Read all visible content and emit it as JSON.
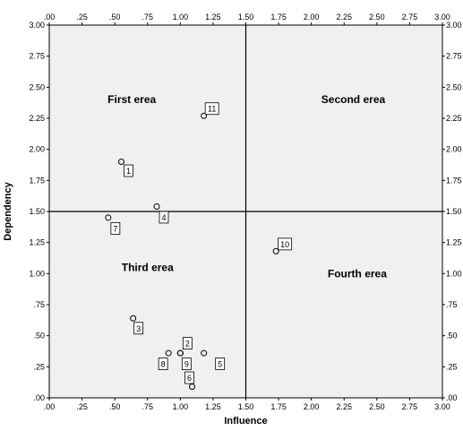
{
  "chart_data": {
    "type": "scatter",
    "xlabel": "Influence",
    "ylabel": "Dependency",
    "xlim": [
      0,
      3
    ],
    "ylim": [
      0,
      3
    ],
    "xticks": [
      ".00",
      ".25",
      ".50",
      ".75",
      "1.00",
      "1.25",
      "1.50",
      "1.75",
      "2.00",
      "2.25",
      "2.50",
      "2.75",
      "3.00"
    ],
    "yticks": [
      ".00",
      ".25",
      ".50",
      ".75",
      "1.00",
      "1.25",
      "1.50",
      "1.75",
      "2.00",
      "2.25",
      "2.50",
      "2.75",
      "3.00"
    ],
    "reference_lines": {
      "x": 1.5,
      "y": 1.5
    },
    "quadrants": [
      {
        "name": "First erea",
        "x": 0.63,
        "y": 2.4
      },
      {
        "name": "Second erea",
        "x": 2.32,
        "y": 2.4
      },
      {
        "name": "Third erea",
        "x": 0.75,
        "y": 1.05
      },
      {
        "name": "Fourth erea",
        "x": 2.35,
        "y": 1.0
      }
    ],
    "points": [
      {
        "label": "1",
        "x": 0.55,
        "y": 1.9
      },
      {
        "label": "2",
        "x": 1.0,
        "y": 0.36
      },
      {
        "label": "3",
        "x": 0.64,
        "y": 0.64
      },
      {
        "label": "4",
        "x": 0.82,
        "y": 1.54
      },
      {
        "label": "5",
        "x": 1.18,
        "y": 0.36
      },
      {
        "label": "6",
        "x": 1.09,
        "y": 0.09
      },
      {
        "label": "7",
        "x": 0.45,
        "y": 1.45
      },
      {
        "label": "8",
        "x": 0.91,
        "y": 0.36
      },
      {
        "label": "9",
        "x": 1.0,
        "y": 0.36
      },
      {
        "label": "10",
        "x": 1.73,
        "y": 1.18
      },
      {
        "label": "11",
        "x": 1.18,
        "y": 2.27
      }
    ],
    "label_offsets": {
      "1": [
        8,
        10
      ],
      "2": [
        8,
        -11
      ],
      "3": [
        6,
        11
      ],
      "4": [
        8,
        12
      ],
      "5": [
        18,
        12
      ],
      "6": [
        -3,
        -10
      ],
      "7": [
        8,
        12
      ],
      "8": [
        -6,
        12
      ],
      "9": [
        7,
        12
      ],
      "10": [
        10,
        -8
      ],
      "11": [
        9,
        -8
      ]
    },
    "grid": false,
    "colors": {
      "plot_bg": "#f0f0f0",
      "frame": "#000000",
      "point": "#000000"
    }
  }
}
